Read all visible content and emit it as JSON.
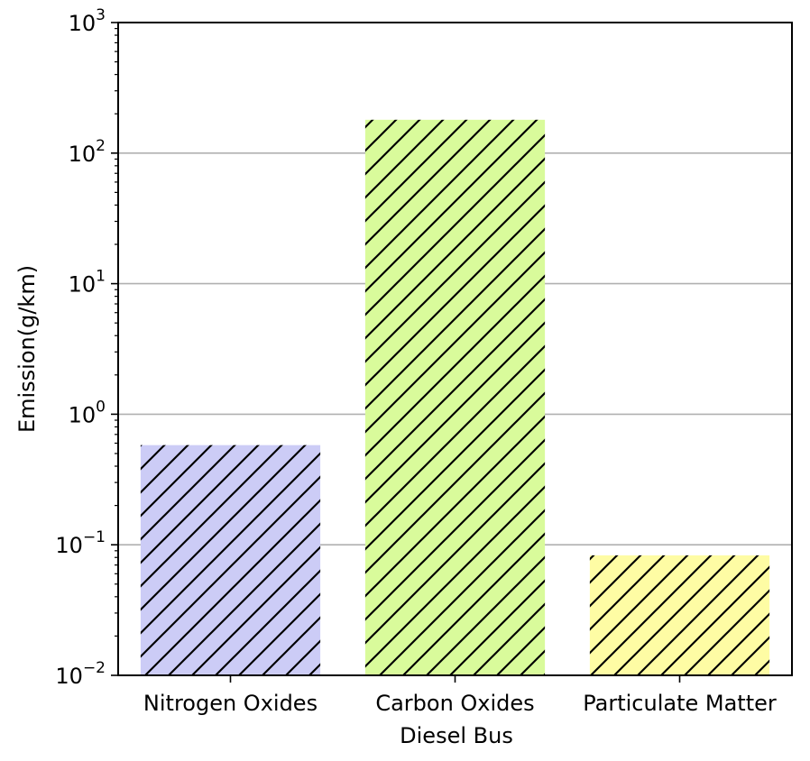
{
  "chart_data": {
    "type": "bar",
    "title": "",
    "xlabel": "Diesel Bus",
    "ylabel": "Emission(g/km)",
    "yscale": "log",
    "ylim": [
      0.01,
      1000
    ],
    "grid": "y-major",
    "categories": [
      "Nitrogen Oxides",
      "Carbon Oxides",
      "Particulate Matter"
    ],
    "values": [
      0.58,
      180,
      0.083
    ],
    "colors": [
      "#ccccf6",
      "#d9fb9b",
      "#fefca4"
    ],
    "hatch": "diagonal",
    "y_ticks": [
      {
        "value": 0.01,
        "base": "10",
        "exp": "−2"
      },
      {
        "value": 0.1,
        "base": "10",
        "exp": "−1"
      },
      {
        "value": 1,
        "base": "10",
        "exp": "0"
      },
      {
        "value": 10,
        "base": "10",
        "exp": "1"
      },
      {
        "value": 100,
        "base": "10",
        "exp": "2"
      },
      {
        "value": 1000,
        "base": "10",
        "exp": "3"
      }
    ]
  }
}
